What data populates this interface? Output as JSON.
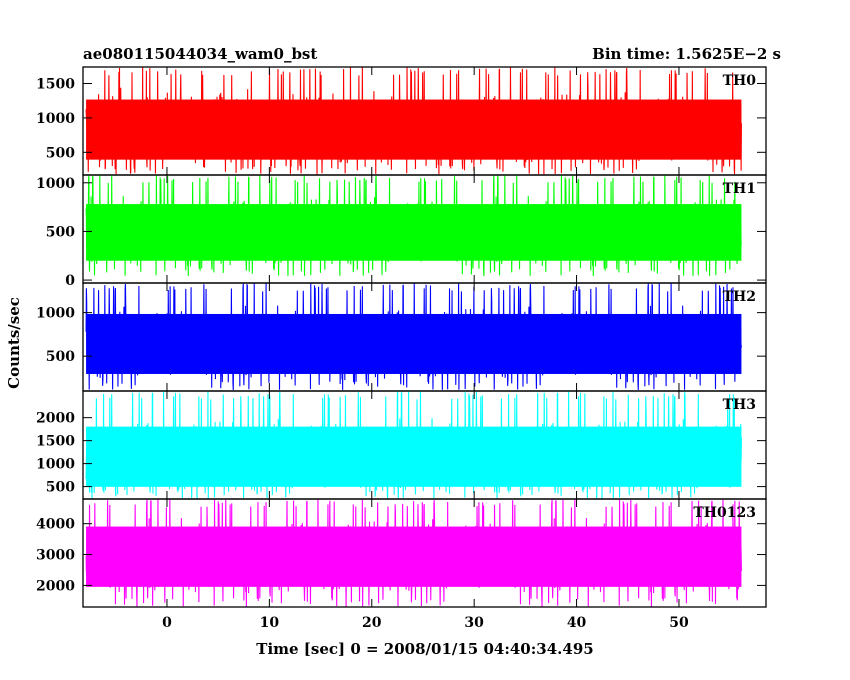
{
  "header": {
    "left_title": "ae080115044034_wam0_bst",
    "right_title": "Bin time: 1.5625E−2 s"
  },
  "chart_data": {
    "type": "line",
    "xlabel": "Time [sec] 0 = 2008/01/15 04:40:34.495",
    "ylabel": "Counts/sec",
    "xlim": [
      -8.2,
      58.5
    ],
    "x_ticks": [
      0,
      10,
      20,
      30,
      40,
      50
    ],
    "x_range_data": [
      -7.9,
      56.1
    ],
    "bin_time": 0.015625,
    "panels": [
      {
        "name": "TH0",
        "color": "#ff0000",
        "ylim": [
          170,
          1740
        ],
        "y_ticks": [
          500,
          1000,
          1500
        ],
        "baseline": 830,
        "min": 180,
        "max": 1740
      },
      {
        "name": "TH1",
        "color": "#00ff00",
        "ylim": [
          -30,
          1080
        ],
        "y_ticks": [
          0,
          500,
          1000
        ],
        "baseline": 490,
        "min": 40,
        "max": 1080
      },
      {
        "name": "TH2",
        "color": "#0000ff",
        "ylim": [
          100,
          1340
        ],
        "y_ticks": [
          500,
          1000
        ],
        "baseline": 640,
        "min": 110,
        "max": 1340
      },
      {
        "name": "TH3",
        "color": "#00ffff",
        "ylim": [
          230,
          2580
        ],
        "y_ticks": [
          500,
          1000,
          1500,
          2000
        ],
        "baseline": 1150,
        "min": 240,
        "max": 2580
      },
      {
        "name": "TH0123",
        "color": "#ff00ff",
        "ylim": [
          1300,
          4800
        ],
        "y_ticks": [
          2000,
          3000,
          4000
        ],
        "baseline": 2930,
        "min": 1310,
        "max": 4800
      }
    ]
  }
}
